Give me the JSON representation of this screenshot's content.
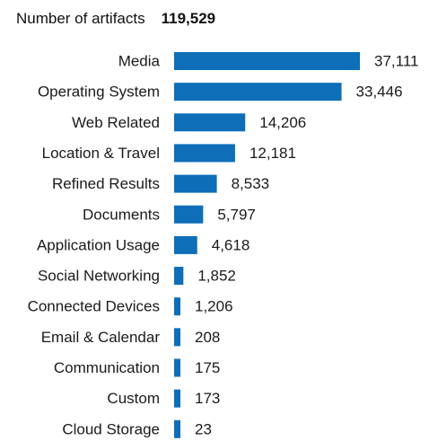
{
  "header": {
    "label": "Number of artifacts",
    "total": "119,529"
  },
  "colors": {
    "bar": "#0e6eb8",
    "text": "#1a1a1a"
  },
  "chart_data": {
    "type": "bar",
    "orientation": "horizontal",
    "categories": [
      "Media",
      "Operating System",
      "Web Related",
      "Location & Travel",
      "Refined Results",
      "Documents",
      "Application Usage",
      "Social Networking",
      "Connected Devices",
      "Email & Calendar",
      "Communication",
      "Custom",
      "Cloud Storage"
    ],
    "values": [
      37111,
      33446,
      14206,
      12181,
      8533,
      5797,
      4618,
      1852,
      1206,
      208,
      175,
      173,
      23
    ],
    "value_labels": [
      "37,111",
      "33,446",
      "14,206",
      "12,181",
      "8,533",
      "5,797",
      "4,618",
      "1,852",
      "1,206",
      "208",
      "175",
      "173",
      "23"
    ],
    "grid": false,
    "legend": "none"
  }
}
